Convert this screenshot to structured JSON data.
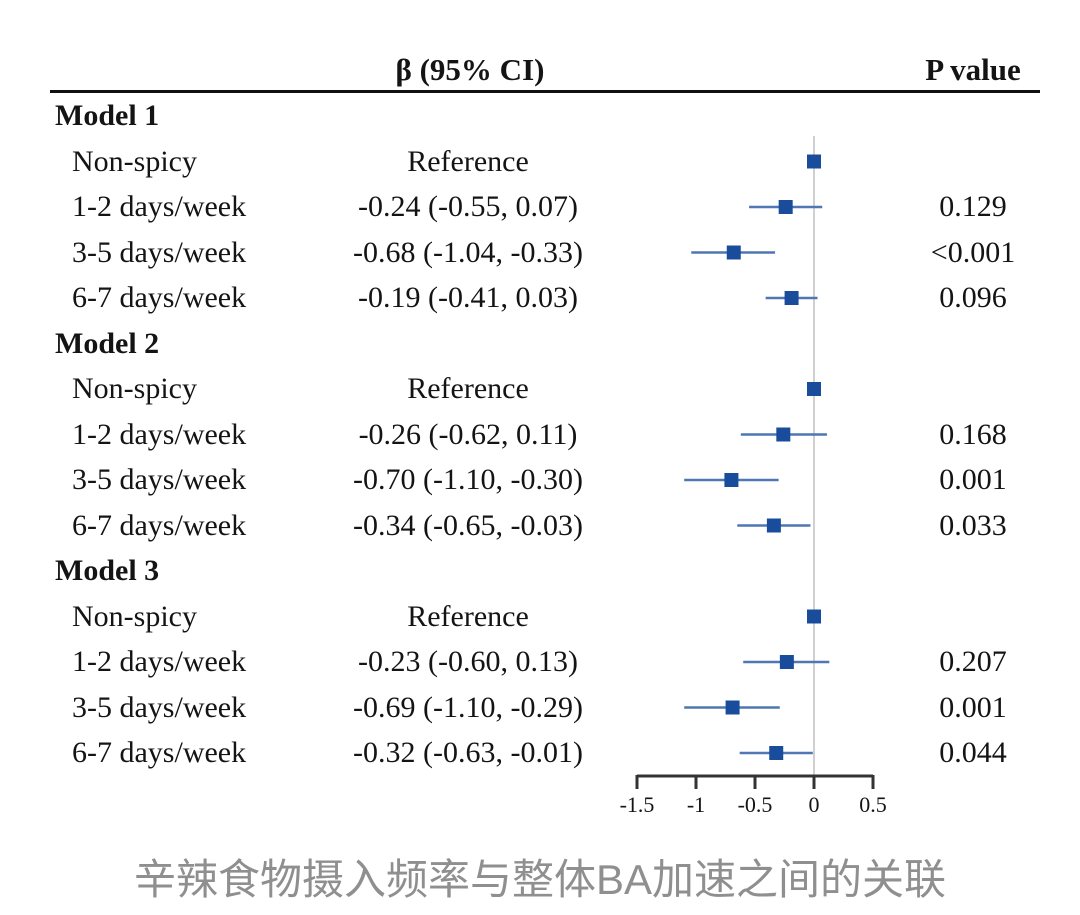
{
  "header": {
    "beta_ci_label": "β (95% CI)",
    "p_value_label": "P value"
  },
  "caption": "辛辣食物摄入频率与整体BA加速之间的关联",
  "colors": {
    "marker": "#1a4c9c",
    "ci_line": "#4f77b3",
    "zero_line": "#c4c4c4",
    "axis": "#333333",
    "text": "#141414",
    "caption": "#8f8f8f"
  },
  "chart_data": {
    "type": "forest",
    "x_ticks": [
      "-1.5",
      "-1",
      "-0.5",
      "0",
      "0.5"
    ],
    "x_tick_values": [
      -1.5,
      -1,
      -0.5,
      0,
      0.5
    ],
    "xlim": [
      -1.5,
      0.5
    ],
    "reference_line_x": 0,
    "groups": [
      {
        "label": "Model 1",
        "rows": [
          {
            "label": "Non-spicy",
            "beta_ci": "Reference",
            "reference": true,
            "beta": 0,
            "lo": 0,
            "hi": 0,
            "p": ""
          },
          {
            "label": "1-2 days/week",
            "beta_ci": "-0.24 (-0.55, 0.07)",
            "reference": false,
            "beta": -0.24,
            "lo": -0.55,
            "hi": 0.07,
            "p": "0.129"
          },
          {
            "label": "3-5 days/week",
            "beta_ci": "-0.68 (-1.04, -0.33)",
            "reference": false,
            "beta": -0.68,
            "lo": -1.04,
            "hi": -0.33,
            "p": "<0.001"
          },
          {
            "label": "6-7 days/week",
            "beta_ci": "-0.19 (-0.41, 0.03)",
            "reference": false,
            "beta": -0.19,
            "lo": -0.41,
            "hi": 0.03,
            "p": "0.096"
          }
        ]
      },
      {
        "label": "Model 2",
        "rows": [
          {
            "label": "Non-spicy",
            "beta_ci": "Reference",
            "reference": true,
            "beta": 0,
            "lo": 0,
            "hi": 0,
            "p": ""
          },
          {
            "label": "1-2 days/week",
            "beta_ci": "-0.26 (-0.62, 0.11)",
            "reference": false,
            "beta": -0.26,
            "lo": -0.62,
            "hi": 0.11,
            "p": "0.168"
          },
          {
            "label": "3-5 days/week",
            "beta_ci": "-0.70 (-1.10, -0.30)",
            "reference": false,
            "beta": -0.7,
            "lo": -1.1,
            "hi": -0.3,
            "p": "0.001"
          },
          {
            "label": "6-7 days/week",
            "beta_ci": "-0.34 (-0.65, -0.03)",
            "reference": false,
            "beta": -0.34,
            "lo": -0.65,
            "hi": -0.03,
            "p": "0.033"
          }
        ]
      },
      {
        "label": "Model 3",
        "rows": [
          {
            "label": "Non-spicy",
            "beta_ci": "Reference",
            "reference": true,
            "beta": 0,
            "lo": 0,
            "hi": 0,
            "p": ""
          },
          {
            "label": "1-2 days/week",
            "beta_ci": "-0.23 (-0.60, 0.13)",
            "reference": false,
            "beta": -0.23,
            "lo": -0.6,
            "hi": 0.13,
            "p": "0.207"
          },
          {
            "label": "3-5 days/week",
            "beta_ci": "-0.69 (-1.10, -0.29)",
            "reference": false,
            "beta": -0.69,
            "lo": -1.1,
            "hi": -0.29,
            "p": "0.001"
          },
          {
            "label": "6-7 days/week",
            "beta_ci": "-0.32 (-0.63, -0.01)",
            "reference": false,
            "beta": -0.32,
            "lo": -0.63,
            "hi": -0.01,
            "p": "0.044"
          }
        ]
      }
    ]
  }
}
